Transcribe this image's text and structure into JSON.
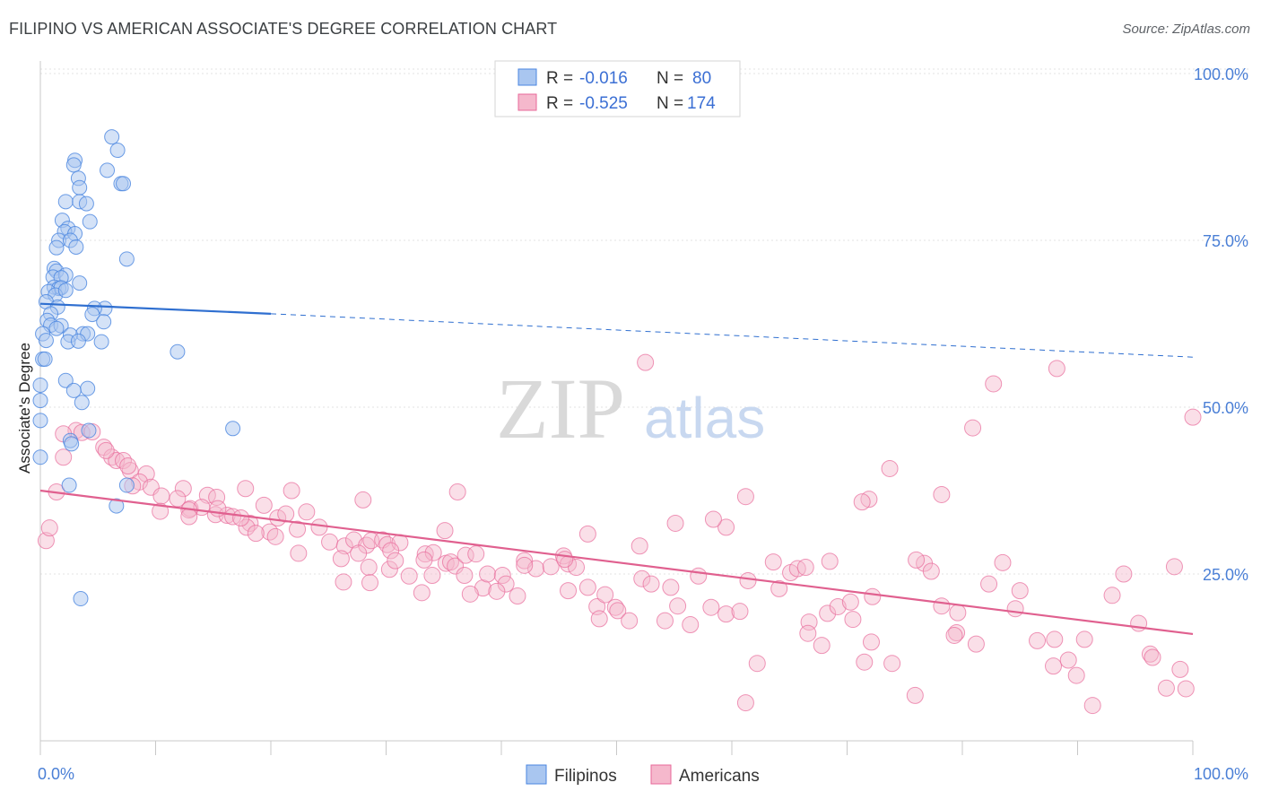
{
  "title": "FILIPINO VS AMERICAN ASSOCIATE'S DEGREE CORRELATION CHART",
  "source": "Source: ZipAtlas.com",
  "watermark": {
    "zip": "ZIP",
    "atlas": "atlas"
  },
  "colors": {
    "blue": "#4a86e0",
    "blue_fill": "#a9c6f0",
    "pink": "#e8699a",
    "pink_fill": "#f5b8cc",
    "tick": "#4a7fd6"
  },
  "legend_top": {
    "rows": [
      {
        "r_label": "R =",
        "r_value": "-0.016",
        "n_label": "N =",
        "n_value": "80"
      },
      {
        "r_label": "R =",
        "r_value": "-0.525",
        "n_label": "N =",
        "n_value": "174"
      }
    ]
  },
  "legend_bottom": {
    "items": [
      "Filipinos",
      "Americans"
    ]
  },
  "chart_data": {
    "type": "scatter",
    "title": "FILIPINO VS AMERICAN ASSOCIATE'S DEGREE CORRELATION CHART",
    "ylabel": "Associate's Degree",
    "xlabel": "",
    "xlim": [
      0,
      100
    ],
    "ylim": [
      0,
      100
    ],
    "x_tick_labels": [
      "0.0%",
      "100.0%"
    ],
    "y_tick_labels": [
      "100.0%",
      "75.0%",
      "50.0%",
      "25.0%"
    ],
    "y_tick_values": [
      100,
      75,
      50,
      25
    ],
    "grid": true,
    "legend_position": "top-center",
    "series": [
      {
        "name": "Filipinos",
        "color": "#4a86e0",
        "r": -0.016,
        "n": 80,
        "trend": {
          "x0": 0,
          "y0": 65.5,
          "x1": 20,
          "y1": 64.0,
          "dash_x1": 100,
          "dash_y1": 57.5
        },
        "points": [
          [
            6.2,
            90.5
          ],
          [
            6.7,
            88.5
          ],
          [
            3.0,
            87.0
          ],
          [
            2.9,
            86.3
          ],
          [
            5.8,
            85.5
          ],
          [
            7.0,
            83.5
          ],
          [
            3.3,
            84.3
          ],
          [
            7.2,
            83.5
          ],
          [
            3.4,
            82.9
          ],
          [
            2.2,
            80.8
          ],
          [
            3.4,
            80.8
          ],
          [
            4.0,
            80.5
          ],
          [
            1.9,
            78.0
          ],
          [
            4.3,
            77.8
          ],
          [
            2.4,
            76.8
          ],
          [
            2.1,
            76.3
          ],
          [
            3.0,
            76.0
          ],
          [
            1.6,
            75.0
          ],
          [
            2.6,
            75.0
          ],
          [
            3.1,
            74.0
          ],
          [
            1.4,
            73.9
          ],
          [
            7.5,
            72.2
          ],
          [
            1.2,
            70.8
          ],
          [
            1.4,
            70.4
          ],
          [
            1.1,
            69.5
          ],
          [
            2.2,
            69.8
          ],
          [
            1.8,
            69.4
          ],
          [
            3.4,
            68.6
          ],
          [
            1.2,
            68.0
          ],
          [
            1.6,
            67.8
          ],
          [
            1.8,
            67.9
          ],
          [
            0.7,
            67.3
          ],
          [
            1.3,
            66.8
          ],
          [
            2.2,
            67.5
          ],
          [
            0.5,
            65.8
          ],
          [
            1.5,
            65.0
          ],
          [
            5.6,
            64.8
          ],
          [
            4.7,
            64.8
          ],
          [
            0.9,
            64.0
          ],
          [
            4.5,
            63.9
          ],
          [
            0.6,
            63.0
          ],
          [
            0.9,
            62.3
          ],
          [
            5.5,
            62.8
          ],
          [
            1.8,
            62.2
          ],
          [
            1.4,
            61.8
          ],
          [
            0.2,
            61.0
          ],
          [
            3.7,
            61.0
          ],
          [
            4.1,
            61.0
          ],
          [
            2.6,
            60.8
          ],
          [
            0.5,
            60.0
          ],
          [
            2.4,
            59.8
          ],
          [
            3.3,
            59.9
          ],
          [
            5.3,
            59.8
          ],
          [
            11.9,
            58.3
          ],
          [
            0.2,
            57.2
          ],
          [
            0.4,
            57.2
          ],
          [
            0.0,
            53.3
          ],
          [
            2.2,
            54.0
          ],
          [
            4.1,
            52.8
          ],
          [
            2.9,
            52.5
          ],
          [
            0.0,
            51.0
          ],
          [
            3.6,
            50.7
          ],
          [
            0.0,
            48.0
          ],
          [
            16.7,
            46.8
          ],
          [
            0.0,
            42.5
          ],
          [
            2.6,
            45.0
          ],
          [
            7.5,
            38.3
          ],
          [
            2.5,
            38.3
          ],
          [
            6.6,
            35.2
          ],
          [
            3.5,
            21.3
          ],
          [
            4.2,
            46.5
          ],
          [
            2.7,
            44.5
          ]
        ]
      },
      {
        "name": "Americans",
        "color": "#e8699a",
        "r": -0.525,
        "n": 174,
        "trend": {
          "x0": 0,
          "y0": 37.5,
          "x1": 100,
          "y1": 16.0
        },
        "points": [
          [
            3.1,
            46.5
          ],
          [
            3.6,
            46.2
          ],
          [
            4.5,
            46.3
          ],
          [
            2.0,
            46.0
          ],
          [
            5.5,
            44.0
          ],
          [
            2.0,
            42.5
          ],
          [
            6.2,
            42.5
          ],
          [
            6.6,
            42.0
          ],
          [
            7.2,
            42.0
          ],
          [
            5.7,
            43.5
          ],
          [
            7.8,
            40.5
          ],
          [
            9.2,
            40.0
          ],
          [
            8.6,
            38.8
          ],
          [
            1.4,
            37.3
          ],
          [
            9.6,
            38.0
          ],
          [
            12.4,
            37.8
          ],
          [
            10.5,
            36.7
          ],
          [
            11.9,
            36.3
          ],
          [
            14.5,
            36.8
          ],
          [
            15.3,
            36.5
          ],
          [
            17.8,
            37.8
          ],
          [
            21.8,
            37.5
          ],
          [
            13.0,
            34.8
          ],
          [
            14.0,
            35.0
          ],
          [
            15.2,
            33.9
          ],
          [
            12.9,
            34.6
          ],
          [
            16.2,
            33.8
          ],
          [
            16.7,
            33.6
          ],
          [
            18.2,
            32.6
          ],
          [
            19.4,
            35.3
          ],
          [
            20.6,
            33.4
          ],
          [
            21.3,
            34.0
          ],
          [
            23.1,
            34.3
          ],
          [
            24.2,
            32.0
          ],
          [
            17.9,
            32.0
          ],
          [
            19.9,
            31.3
          ],
          [
            20.4,
            30.6
          ],
          [
            22.3,
            31.7
          ],
          [
            25.1,
            29.8
          ],
          [
            26.4,
            29.2
          ],
          [
            27.2,
            30.1
          ],
          [
            28.3,
            29.3
          ],
          [
            28.7,
            30.0
          ],
          [
            29.7,
            30.1
          ],
          [
            26.1,
            27.3
          ],
          [
            27.6,
            28.1
          ],
          [
            30.1,
            29.4
          ],
          [
            31.2,
            29.7
          ],
          [
            30.4,
            28.5
          ],
          [
            33.4,
            28.0
          ],
          [
            34.1,
            28.2
          ],
          [
            35.2,
            26.6
          ],
          [
            35.6,
            26.8
          ],
          [
            36.0,
            26.2
          ],
          [
            36.9,
            27.8
          ],
          [
            37.8,
            28.0
          ],
          [
            28.5,
            26.0
          ],
          [
            30.3,
            25.7
          ],
          [
            32.0,
            24.7
          ],
          [
            34.0,
            24.8
          ],
          [
            36.8,
            24.8
          ],
          [
            38.4,
            22.9
          ],
          [
            38.8,
            25.0
          ],
          [
            40.1,
            24.8
          ],
          [
            40.4,
            23.5
          ],
          [
            41.4,
            21.7
          ],
          [
            28.6,
            23.7
          ],
          [
            33.1,
            22.2
          ],
          [
            37.3,
            22.0
          ],
          [
            39.6,
            22.4
          ],
          [
            42.0,
            27.0
          ],
          [
            43.0,
            25.8
          ],
          [
            44.3,
            26.1
          ],
          [
            45.4,
            27.7
          ],
          [
            45.8,
            26.5
          ],
          [
            46.5,
            26.0
          ],
          [
            45.8,
            22.5
          ],
          [
            47.5,
            23.0
          ],
          [
            48.3,
            20.1
          ],
          [
            49.9,
            20.0
          ],
          [
            48.5,
            18.3
          ],
          [
            50.1,
            19.5
          ],
          [
            51.1,
            18.0
          ],
          [
            52.2,
            24.3
          ],
          [
            53.0,
            23.5
          ],
          [
            54.2,
            18.0
          ],
          [
            54.7,
            23.0
          ],
          [
            55.3,
            20.2
          ],
          [
            56.4,
            17.4
          ],
          [
            57.1,
            24.7
          ],
          [
            58.2,
            20.0
          ],
          [
            59.5,
            19.0
          ],
          [
            60.7,
            19.4
          ],
          [
            61.4,
            24.0
          ],
          [
            62.2,
            11.6
          ],
          [
            63.6,
            26.8
          ],
          [
            64.1,
            22.8
          ],
          [
            65.1,
            25.2
          ],
          [
            65.7,
            25.8
          ],
          [
            66.4,
            26.0
          ],
          [
            66.7,
            17.8
          ],
          [
            67.8,
            14.3
          ],
          [
            68.3,
            19.1
          ],
          [
            69.2,
            20.1
          ],
          [
            70.3,
            20.8
          ],
          [
            70.5,
            18.2
          ],
          [
            71.5,
            11.8
          ],
          [
            72.2,
            21.6
          ],
          [
            73.9,
            11.6
          ],
          [
            72.1,
            14.8
          ],
          [
            75.9,
            6.8
          ],
          [
            76.7,
            26.6
          ],
          [
            77.3,
            25.4
          ],
          [
            78.2,
            20.2
          ],
          [
            79.6,
            19.2
          ],
          [
            79.5,
            16.2
          ],
          [
            79.3,
            15.8
          ],
          [
            81.2,
            14.5
          ],
          [
            82.3,
            23.5
          ],
          [
            83.5,
            26.7
          ],
          [
            84.6,
            19.8
          ],
          [
            85.0,
            22.5
          ],
          [
            86.5,
            15.0
          ],
          [
            87.9,
            11.2
          ],
          [
            88.0,
            15.2
          ],
          [
            89.2,
            12.1
          ],
          [
            89.9,
            9.8
          ],
          [
            90.6,
            15.2
          ],
          [
            91.3,
            5.3
          ],
          [
            93.0,
            21.8
          ],
          [
            94.0,
            25.0
          ],
          [
            95.3,
            17.6
          ],
          [
            96.3,
            13.0
          ],
          [
            96.5,
            12.5
          ],
          [
            97.7,
            7.9
          ],
          [
            98.4,
            26.1
          ],
          [
            99.4,
            7.8
          ],
          [
            100.0,
            48.5
          ],
          [
            98.9,
            10.7
          ],
          [
            88.2,
            55.8
          ],
          [
            82.7,
            53.5
          ],
          [
            80.9,
            46.9
          ],
          [
            78.2,
            36.9
          ],
          [
            76.0,
            27.1
          ],
          [
            73.7,
            40.8
          ],
          [
            71.9,
            36.2
          ],
          [
            71.3,
            35.8
          ],
          [
            68.5,
            26.9
          ],
          [
            66.6,
            16.1
          ],
          [
            61.2,
            36.6
          ],
          [
            59.5,
            32.0
          ],
          [
            58.4,
            33.2
          ],
          [
            55.1,
            32.6
          ],
          [
            52.0,
            29.2
          ],
          [
            49.0,
            21.9
          ],
          [
            47.5,
            31.0
          ],
          [
            45.5,
            27.2
          ],
          [
            42.0,
            26.3
          ],
          [
            36.2,
            37.3
          ],
          [
            35.1,
            31.5
          ],
          [
            33.3,
            27.1
          ],
          [
            30.8,
            27.0
          ],
          [
            28.0,
            36.1
          ],
          [
            26.3,
            23.8
          ],
          [
            22.4,
            28.1
          ],
          [
            18.7,
            31.1
          ],
          [
            17.4,
            33.4
          ],
          [
            15.4,
            34.8
          ],
          [
            8.0,
            38.2
          ],
          [
            10.4,
            34.4
          ],
          [
            12.9,
            33.6
          ],
          [
            7.6,
            41.2
          ],
          [
            0.5,
            30.0
          ],
          [
            0.8,
            31.9
          ],
          [
            52.5,
            56.7
          ],
          [
            61.2,
            5.7
          ]
        ]
      }
    ]
  }
}
